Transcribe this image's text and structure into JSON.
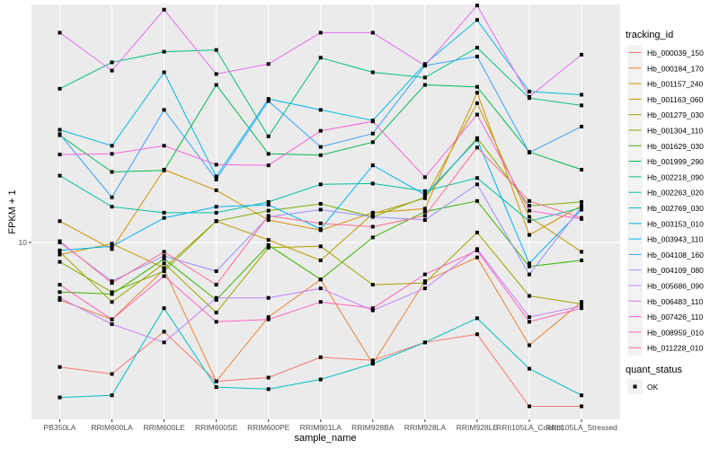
{
  "chart_data": {
    "type": "line",
    "title": "",
    "xlabel": "sample_name",
    "ylabel": "FPKM + 1",
    "y_scale": "log10",
    "y_ticks": [
      10
    ],
    "y_tick_labels": [
      "10"
    ],
    "ylim": [
      2.53,
      63.5
    ],
    "grid": true,
    "legend_position": "right",
    "categories": [
      "PB350LA",
      "RRIM600LA",
      "RRIM600LE",
      "RRIM600SE",
      "RRIM600PE",
      "RRIM901LA",
      "RRIM928BA",
      "RRIM928LA",
      "RRIM928LE",
      "RRII105LA_Control",
      "RRII105LA_Stressed"
    ],
    "legend_title": "tracking_id",
    "shape_legend_title": "quant_status",
    "shape_legend_items": [
      "OK"
    ],
    "series": [
      {
        "name": "Hb_000039_150",
        "color": "#F8766D",
        "values": [
          3.8,
          3.6,
          5.0,
          3.4,
          3.5,
          4.1,
          4.0,
          4.6,
          4.9,
          2.8,
          2.8
        ]
      },
      {
        "name": "Hb_000184_170",
        "color": "#EA8331",
        "values": [
          6.4,
          5.5,
          8.1,
          3.4,
          5.6,
          7.5,
          3.9,
          7.4,
          8.9,
          4.5,
          6.3
        ]
      },
      {
        "name": "Hb_001157_240",
        "color": "#D89000",
        "values": [
          11.8,
          9.5,
          17.6,
          15.0,
          11.9,
          11.0,
          12.6,
          13.0,
          32.0,
          10.6,
          13.3
        ]
      },
      {
        "name": "Hb_001163_060",
        "color": "#C09B00",
        "values": [
          9.1,
          9.9,
          8.2,
          11.8,
          10.2,
          8.7,
          12.5,
          14.1,
          29.5,
          12.2,
          9.3
        ]
      },
      {
        "name": "Hb_001279_030",
        "color": "#A3A500",
        "values": [
          9.3,
          6.3,
          8.5,
          5.8,
          9.6,
          9.7,
          7.2,
          7.3,
          10.8,
          6.6,
          6.2
        ]
      },
      {
        "name": "Hb_001304_110",
        "color": "#7CAE00",
        "values": [
          8.6,
          6.8,
          8.0,
          11.8,
          12.8,
          13.5,
          12.2,
          14.2,
          22.5,
          13.3,
          13.7
        ]
      },
      {
        "name": "Hb_001629_030",
        "color": "#39B600",
        "values": [
          6.8,
          6.7,
          8.8,
          6.4,
          9.8,
          7.5,
          10.4,
          12.7,
          13.8,
          8.3,
          8.7
        ]
      },
      {
        "name": "Hb_001999_290",
        "color": "#00BB4E",
        "values": [
          23.0,
          17.3,
          17.5,
          34.0,
          19.9,
          19.7,
          21.8,
          34.0,
          33.5,
          20.2,
          17.6
        ]
      },
      {
        "name": "Hb_002218_090",
        "color": "#00BF7D",
        "values": [
          33.0,
          40.5,
          44.0,
          44.6,
          22.8,
          42.0,
          37.5,
          36.0,
          45.4,
          30.7,
          29.0
        ]
      },
      {
        "name": "Hb_002263_020",
        "color": "#00C1A3",
        "values": [
          16.8,
          13.2,
          12.6,
          12.6,
          13.7,
          15.7,
          15.8,
          14.9,
          16.5,
          11.8,
          13.1
        ]
      },
      {
        "name": "Hb_002769_030",
        "color": "#00BFC4",
        "values": [
          3.0,
          3.05,
          6.0,
          3.25,
          3.2,
          3.45,
          3.9,
          4.6,
          5.55,
          3.75,
          3.05
        ]
      },
      {
        "name": "Hb_003153_010",
        "color": "#00BAE0",
        "values": [
          24.0,
          21.2,
          37.5,
          16.7,
          30.5,
          28.0,
          25.8,
          40.0,
          56.3,
          32.3,
          31.5
        ]
      },
      {
        "name": "Hb_003943_110",
        "color": "#00B0F6",
        "values": [
          9.4,
          9.7,
          12.1,
          13.2,
          13.4,
          11.1,
          18.2,
          14.5,
          22.2,
          8.5,
          12.9
        ]
      },
      {
        "name": "Hb_004108_160",
        "color": "#35A2FF",
        "values": [
          23.2,
          14.2,
          28.0,
          16.3,
          30.0,
          21.0,
          23.3,
          39.5,
          42.4,
          20.1,
          24.6
        ]
      },
      {
        "name": "Hb_004109_080",
        "color": "#9590FF",
        "values": [
          10.0,
          7.4,
          9.0,
          8.0,
          12.2,
          12.9,
          12.2,
          11.9,
          15.7,
          7.8,
          13.2
        ]
      },
      {
        "name": "Hb_005686_090",
        "color": "#C77CFF",
        "values": [
          6.5,
          5.3,
          4.6,
          6.5,
          6.5,
          7.0,
          5.9,
          7.0,
          9.5,
          5.6,
          6.1
        ]
      },
      {
        "name": "Hb_006483_110",
        "color": "#E76BF3",
        "values": [
          51.0,
          38.0,
          61.0,
          37.0,
          40.0,
          51.0,
          51.0,
          39.5,
          63.0,
          31.0,
          43.0
        ]
      },
      {
        "name": "Hb_007426_110",
        "color": "#FA62DB",
        "values": [
          19.8,
          19.9,
          21.2,
          18.3,
          18.2,
          23.8,
          25.6,
          16.6,
          27.0,
          12.8,
          12.0
        ]
      },
      {
        "name": "Hb_008959_010",
        "color": "#FF62BC",
        "values": [
          7.2,
          5.5,
          7.7,
          5.4,
          5.5,
          6.3,
          6.0,
          7.8,
          9.4,
          5.4,
          6.0
        ]
      },
      {
        "name": "Hb_011228_010",
        "color": "#FF6C91",
        "values": [
          10.1,
          7.3,
          9.3,
          7.2,
          12.3,
          11.6,
          11.3,
          12.3,
          20.9,
          13.8,
          12.1
        ]
      }
    ]
  }
}
